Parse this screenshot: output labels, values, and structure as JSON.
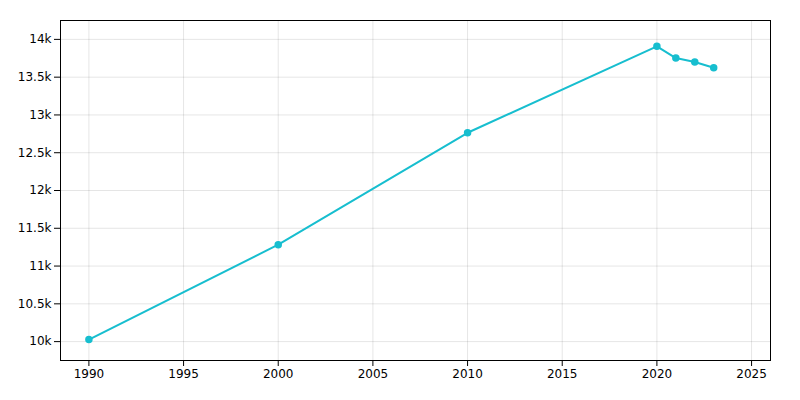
{
  "chart_data": {
    "type": "line",
    "x": [
      1990,
      2000,
      2010,
      2020,
      2021,
      2022,
      2023
    ],
    "values": [
      10027,
      11283,
      12764,
      13908,
      13753,
      13700,
      13624
    ],
    "color": "#17becf",
    "marker": "circle",
    "xlim": [
      1988.5,
      2026
    ],
    "ylim": [
      9750,
      14250
    ],
    "xticks": [
      1990,
      1995,
      2000,
      2005,
      2010,
      2015,
      2020,
      2025
    ],
    "yticks": [
      {
        "value": 10000,
        "label": "10k"
      },
      {
        "value": 10500,
        "label": "10.5k"
      },
      {
        "value": 11000,
        "label": "11k"
      },
      {
        "value": 11500,
        "label": "11.5k"
      },
      {
        "value": 12000,
        "label": "12k"
      },
      {
        "value": 12500,
        "label": "12.5k"
      },
      {
        "value": 13000,
        "label": "13k"
      },
      {
        "value": 13500,
        "label": "13.5k"
      },
      {
        "value": 14000,
        "label": "14k"
      }
    ],
    "grid": true
  }
}
